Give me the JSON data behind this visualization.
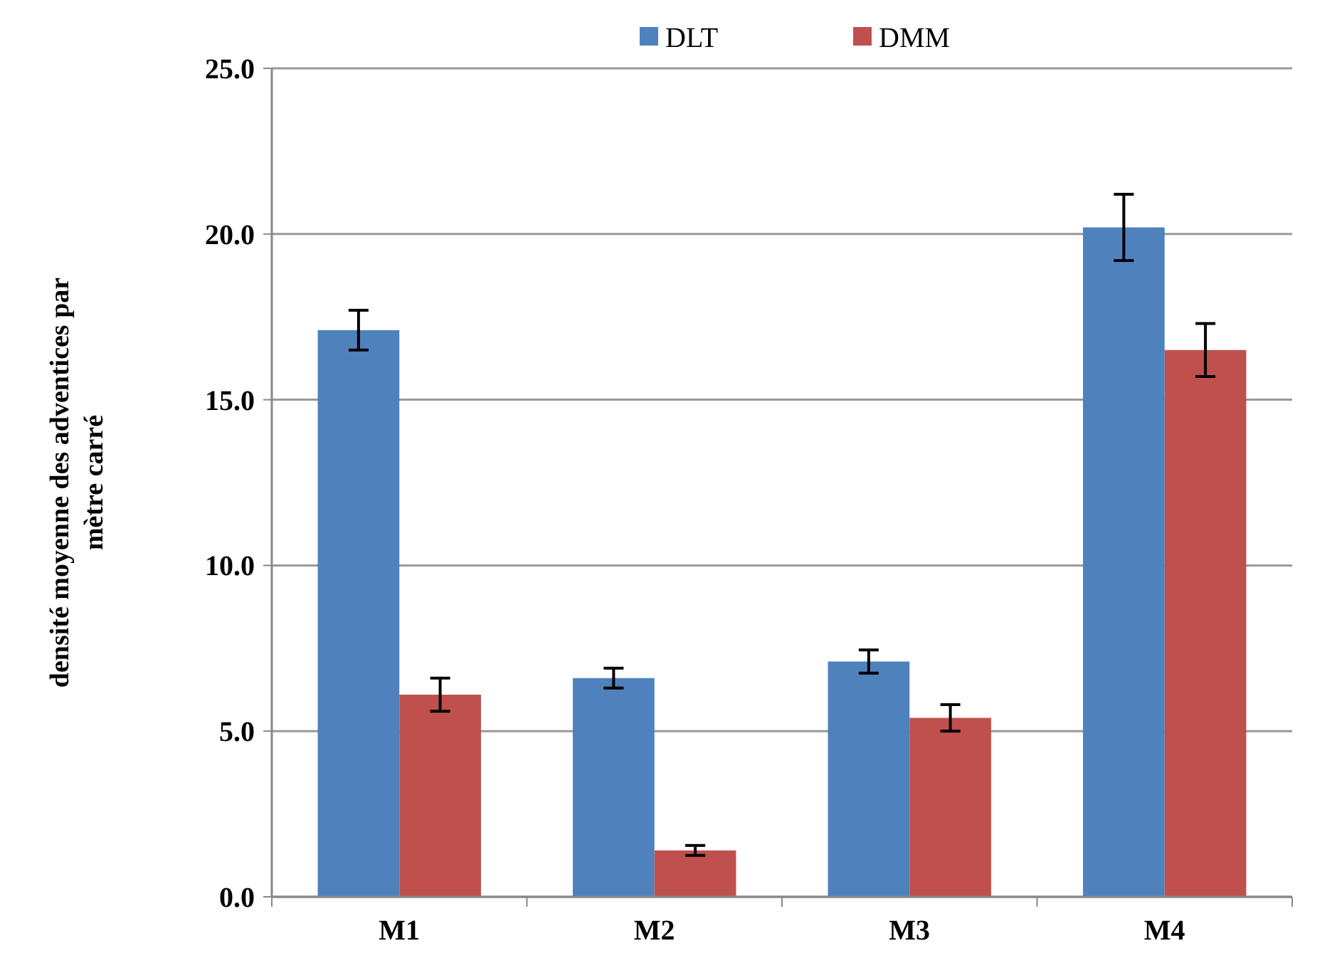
{
  "chart_data": {
    "type": "bar",
    "ylabel": "densité moyenne des adventices par mètre carré",
    "categories": [
      "M1",
      "M2",
      "M3",
      "M4"
    ],
    "series": [
      {
        "name": "DLT",
        "color": "#4f81bd",
        "values": [
          17.1,
          6.6,
          7.1,
          20.2
        ],
        "errors": [
          0.6,
          0.3,
          0.35,
          1.0
        ]
      },
      {
        "name": "DMM",
        "color": "#c0504d",
        "values": [
          6.1,
          1.4,
          5.4,
          16.5
        ],
        "errors": [
          0.5,
          0.15,
          0.4,
          0.8
        ]
      }
    ],
    "ylim": [
      0,
      25
    ],
    "yticks": [
      {
        "value": 0,
        "label": "0.0"
      },
      {
        "value": 5,
        "label": "5.0"
      },
      {
        "value": 10,
        "label": "10.0"
      },
      {
        "value": 15,
        "label": "15.0"
      },
      {
        "value": 20,
        "label": "20.0"
      },
      {
        "value": 25,
        "label": "25.0"
      }
    ],
    "grid": "y",
    "legend": "top"
  }
}
